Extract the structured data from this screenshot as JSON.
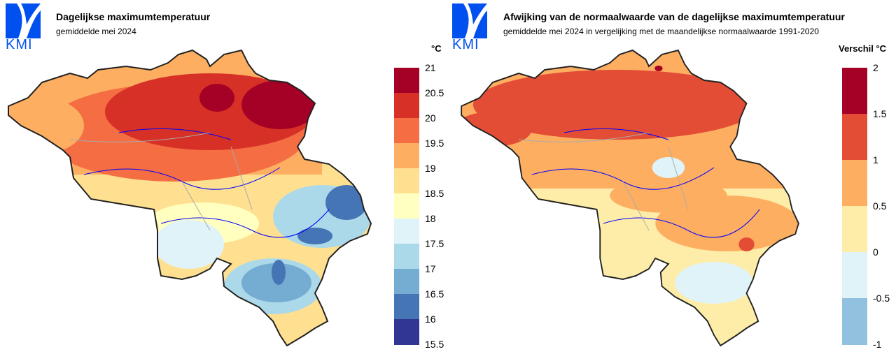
{
  "left": {
    "logo_text": "KMI",
    "title": "Dagelijkse maximumtemperatuur",
    "subtitle": "gemiddelde mei 2024",
    "unit": "°C",
    "legend": {
      "labels": [
        "21",
        "20.5",
        "20",
        "19.5",
        "19",
        "18.5",
        "18",
        "17.5",
        "17",
        "16.5",
        "16",
        "15.5"
      ],
      "colors": [
        "#a50026",
        "#d73027",
        "#f46d43",
        "#fdae61",
        "#fee090",
        "#ffffbf",
        "#e0f3f8",
        "#abd9e9",
        "#74add1",
        "#4575b4",
        "#313695"
      ]
    }
  },
  "right": {
    "logo_text": "KMI",
    "title": "Afwijking van de normaalwaarde van de dagelijkse maximumtemperatuur",
    "subtitle": "gemiddelde mei 2024 in vergelijking met de maandelijkse normaalwaarde 1991-2020",
    "unit": "Verschil °C",
    "legend": {
      "labels": [
        "2",
        "1.5",
        "1",
        "0.5",
        "0",
        "-0.5",
        "-1"
      ],
      "colors": [
        "#a50026",
        "#e34d35",
        "#fdae61",
        "#feeda8",
        "#e0f3f8",
        "#91c1de"
      ]
    }
  }
}
